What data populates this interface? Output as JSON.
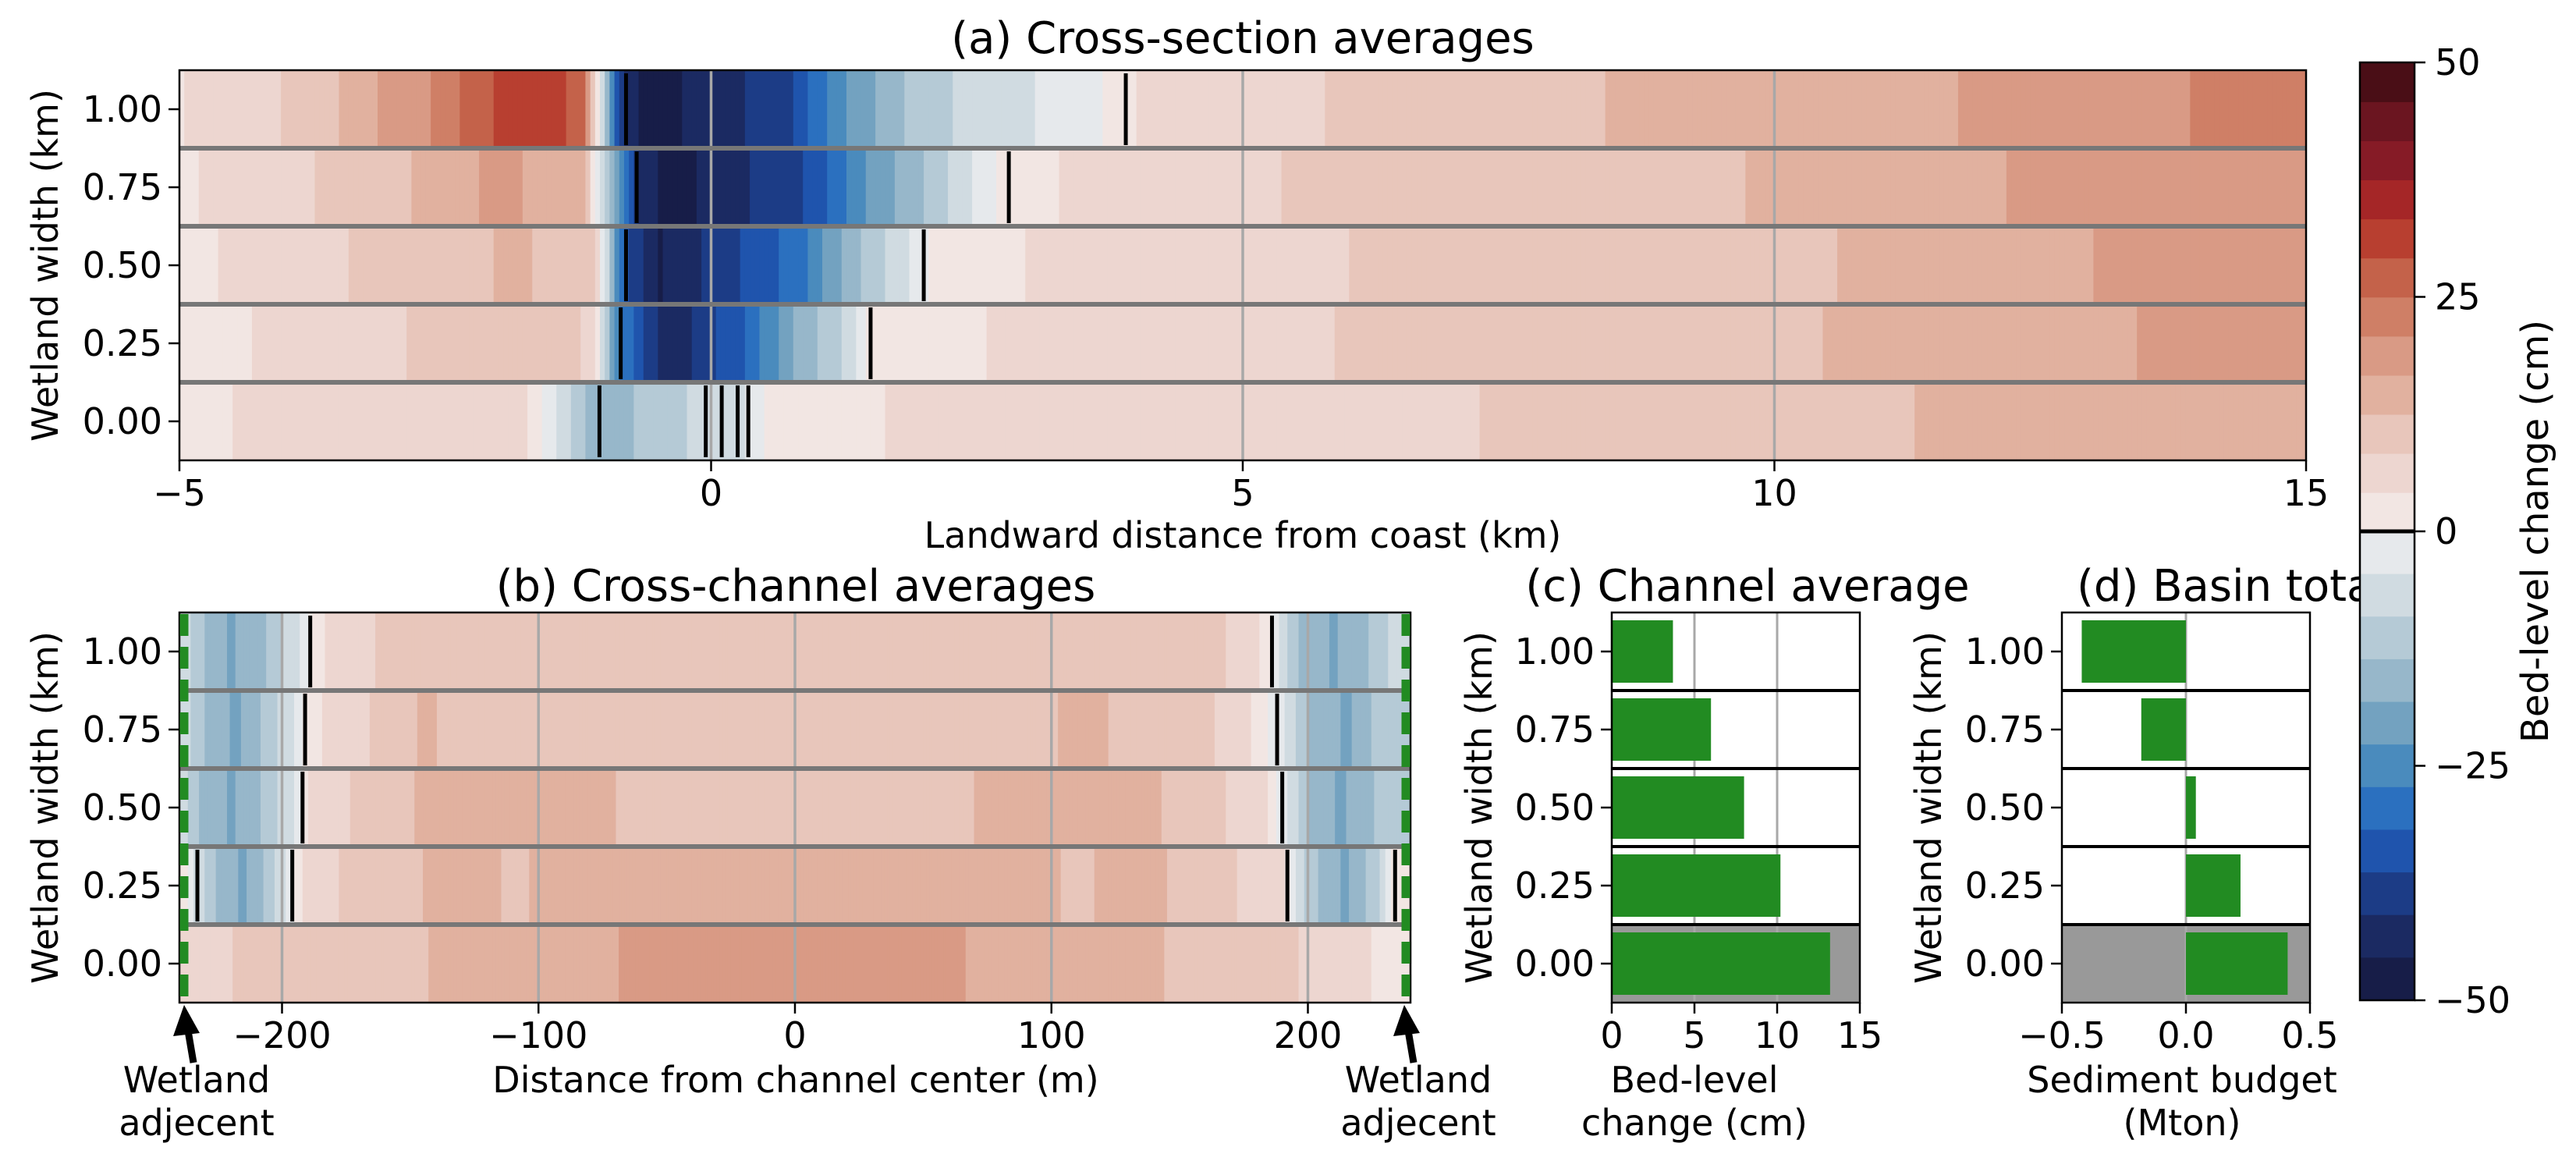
{
  "colorbar": {
    "label": "Bed-level change (cm)",
    "ticks": [
      50,
      25,
      0,
      -25,
      -50
    ],
    "range": [
      -50,
      50
    ],
    "positive_colors": [
      "#f2e6e3",
      "#edd6d0",
      "#e8c6bb",
      "#e1b19f",
      "#d99a85",
      "#cf7f66",
      "#c4624a",
      "#b83f30",
      "#a52627",
      "#861b26",
      "#6b1520",
      "#4a0e16"
    ],
    "negative_colors": [
      "#e6e9ec",
      "#d0dbe1",
      "#b5cad6",
      "#97b7ca",
      "#73a2c0",
      "#4a8bbd",
      "#2b70bf",
      "#1f54ad",
      "#1c3c86",
      "#1b2a62",
      "#171d48"
    ]
  },
  "panels": {
    "a": {
      "title": "(a) Cross-section averages",
      "xlabel": "Landward distance from coast (km)",
      "ylabel": "Wetland width (km)"
    },
    "b": {
      "title": "(b) Cross-channel averages",
      "xlabel": "Distance from channel center (m)",
      "ylabel": "Wetland width (km)"
    },
    "c": {
      "title": "(c) Channel average",
      "xlabel_line1": "Bed-level",
      "xlabel_line2": "change (cm)",
      "ylabel": "Wetland width (km)"
    },
    "d": {
      "title": "(d) Basin total",
      "xlabel_line1": "Sediment budget",
      "xlabel_line2": "(Mton)",
      "ylabel": "Wetland width (km)"
    }
  },
  "annotations": {
    "left_line1": "Wetland",
    "left_line2": "adjecent",
    "right_line1": "Wetland",
    "right_line2": "adjecent"
  },
  "chart_data": [
    {
      "panel": "a",
      "type": "heatmap",
      "rows": [
        "0.00",
        "0.25",
        "0.50",
        "0.75",
        "1.00"
      ],
      "xlim": [
        -5,
        15
      ],
      "xticks": [
        -5,
        0,
        5,
        10,
        15
      ],
      "xtick_labels": [
        "−5",
        "0",
        "5",
        "10",
        "15"
      ],
      "grid_x": [
        0,
        5,
        10
      ],
      "profiles": {
        "1.00": [
          [
            -5,
            4
          ],
          [
            -4.5,
            6
          ],
          [
            -3.7,
            10
          ],
          [
            -3.2,
            16
          ],
          [
            -2.7,
            20
          ],
          [
            -2.3,
            26
          ],
          [
            -1.8,
            32
          ],
          [
            -1.2,
            28
          ],
          [
            -0.85,
            -40
          ],
          [
            -0.6,
            -48
          ],
          [
            0.7,
            -38
          ],
          [
            1.2,
            -24
          ],
          [
            1.8,
            -14
          ],
          [
            2.6,
            -6
          ],
          [
            3.5,
            -3
          ],
          [
            3.9,
            4
          ],
          [
            5,
            6
          ],
          [
            6,
            9
          ],
          [
            7.3,
            11
          ],
          [
            8.8,
            13
          ],
          [
            10.2,
            14
          ],
          [
            11.4,
            16
          ],
          [
            12.8,
            19
          ],
          [
            14,
            21
          ]
        ],
        "0.75": [
          [
            -5,
            3
          ],
          [
            -4.5,
            6
          ],
          [
            -3.5,
            9
          ],
          [
            -2.7,
            13
          ],
          [
            -2,
            18
          ],
          [
            -1.2,
            13
          ],
          [
            -0.7,
            -40
          ],
          [
            -0.4,
            -48
          ],
          [
            0.9,
            -36
          ],
          [
            1.5,
            -22
          ],
          [
            2.2,
            -10
          ],
          [
            2.8,
            3
          ],
          [
            3.6,
            5
          ],
          [
            4.5,
            7
          ],
          [
            5.8,
            9
          ],
          [
            7.5,
            11
          ],
          [
            9,
            12
          ],
          [
            10.5,
            13
          ],
          [
            11.8,
            16
          ],
          [
            13,
            18
          ],
          [
            14,
            20
          ]
        ],
        "0.50": [
          [
            -5,
            3
          ],
          [
            -4.4,
            5
          ],
          [
            -3.5,
            8
          ],
          [
            -2.8,
            11
          ],
          [
            -1.8,
            13
          ],
          [
            -1.1,
            10
          ],
          [
            -0.8,
            -36
          ],
          [
            -0.5,
            -46
          ],
          [
            0.8,
            -30
          ],
          [
            1.3,
            -16
          ],
          [
            1.8,
            -6
          ],
          [
            2.2,
            3
          ],
          [
            3.5,
            5
          ],
          [
            5,
            7
          ],
          [
            6.5,
            9
          ],
          [
            8.3,
            11
          ],
          [
            10.3,
            12
          ],
          [
            12.1,
            15
          ],
          [
            13.7,
            18
          ]
        ],
        "0.25": [
          [
            -5,
            2
          ],
          [
            -4.4,
            4
          ],
          [
            -3.2,
            7
          ],
          [
            -2.7,
            9
          ],
          [
            -1.4,
            11
          ],
          [
            -1.1,
            6
          ],
          [
            -0.9,
            -25
          ],
          [
            -0.4,
            -45
          ],
          [
            0.3,
            -32
          ],
          [
            0.8,
            -18
          ],
          [
            1.3,
            -8
          ],
          [
            1.5,
            2
          ],
          [
            2.5,
            4
          ],
          [
            3.8,
            6
          ],
          [
            5.5,
            8
          ],
          [
            7.6,
            10
          ],
          [
            10,
            12
          ],
          [
            11.8,
            14
          ],
          [
            13.6,
            17
          ]
        ],
        "0.00": [
          [
            -5,
            3
          ],
          [
            -4.6,
            4
          ],
          [
            -3.2,
            6
          ],
          [
            -1.8,
            7
          ],
          [
            -1.3,
            -10
          ],
          [
            -1.0,
            -18
          ],
          [
            -0.6,
            -12
          ],
          [
            0.3,
            -5
          ],
          [
            0.6,
            3
          ],
          [
            2.4,
            5
          ],
          [
            3.9,
            6
          ],
          [
            6.8,
            8
          ],
          [
            9.4,
            10
          ],
          [
            11.7,
            13
          ],
          [
            13.7,
            15
          ]
        ]
      },
      "zero_contours": {
        "1.00": [
          -0.8,
          3.9
        ],
        "0.75": [
          -0.7,
          2.8
        ],
        "0.50": [
          -0.8,
          2.0
        ],
        "0.25": [
          -0.85,
          1.5
        ],
        "0.00": [
          -1.05,
          -0.05,
          0.1,
          0.25,
          0.35
        ]
      }
    },
    {
      "panel": "b",
      "type": "heatmap",
      "rows": [
        "0.00",
        "0.25",
        "0.50",
        "0.75",
        "1.00"
      ],
      "xlim": [
        -240,
        240
      ],
      "xticks": [
        -200,
        -100,
        0,
        100,
        200
      ],
      "xtick_labels": [
        "−200",
        "−100",
        "0",
        "100",
        "200"
      ],
      "grid_x": [
        -200,
        -100,
        0,
        100,
        200
      ],
      "profiles": {
        "1.00": [
          [
            -240,
            -5
          ],
          [
            -230,
            -14
          ],
          [
            -220,
            -19
          ],
          [
            -205,
            -13
          ],
          [
            -193,
            -5
          ],
          [
            -188,
            3
          ],
          [
            -175,
            6
          ],
          [
            -160,
            9
          ],
          [
            -145,
            12
          ],
          [
            -130,
            10
          ],
          [
            -115,
            12
          ],
          [
            -95,
            10
          ],
          [
            -60,
            9
          ],
          [
            60,
            9
          ],
          [
            95,
            10
          ],
          [
            120,
            12
          ],
          [
            145,
            12
          ],
          [
            165,
            9
          ],
          [
            180,
            6
          ],
          [
            188,
            -3
          ],
          [
            195,
            -13
          ],
          [
            210,
            -19
          ],
          [
            228,
            -12
          ],
          [
            236,
            -5
          ]
        ],
        "0.75": [
          [
            -240,
            -5
          ],
          [
            -230,
            -14
          ],
          [
            -218,
            -19
          ],
          [
            -205,
            -12
          ],
          [
            -195,
            -4
          ],
          [
            -190,
            3
          ],
          [
            -175,
            6
          ],
          [
            -160,
            10
          ],
          [
            -145,
            13
          ],
          [
            -125,
            11
          ],
          [
            -100,
            12
          ],
          [
            -80,
            11
          ],
          [
            -40,
            10
          ],
          [
            40,
            10
          ],
          [
            80,
            11
          ],
          [
            110,
            13
          ],
          [
            135,
            12
          ],
          [
            155,
            10
          ],
          [
            175,
            6
          ],
          [
            190,
            -4
          ],
          [
            200,
            -14
          ],
          [
            215,
            -19
          ],
          [
            232,
            -10
          ]
        ],
        "0.50": [
          [
            -240,
            -5
          ],
          [
            -232,
            -14
          ],
          [
            -220,
            -19
          ],
          [
            -207,
            -13
          ],
          [
            -195,
            -4
          ],
          [
            -190,
            4
          ],
          [
            -175,
            8
          ],
          [
            -160,
            11
          ],
          [
            -145,
            13
          ],
          [
            -120,
            15
          ],
          [
            -90,
            13
          ],
          [
            -50,
            12
          ],
          [
            50,
            12
          ],
          [
            90,
            13
          ],
          [
            120,
            14
          ],
          [
            150,
            12
          ],
          [
            170,
            8
          ],
          [
            183,
            5
          ],
          [
            192,
            -4
          ],
          [
            200,
            -14
          ],
          [
            213,
            -19
          ],
          [
            230,
            -12
          ]
        ],
        "0.25": [
          [
            -240,
            4
          ],
          [
            -233,
            -6
          ],
          [
            -225,
            -14
          ],
          [
            -215,
            -19
          ],
          [
            -205,
            -12
          ],
          [
            -198,
            -4
          ],
          [
            -192,
            4
          ],
          [
            -180,
            8
          ],
          [
            -165,
            10
          ],
          [
            -150,
            12
          ],
          [
            -130,
            14
          ],
          [
            -110,
            12
          ],
          [
            -70,
            15
          ],
          [
            70,
            15
          ],
          [
            110,
            12
          ],
          [
            135,
            14
          ],
          [
            155,
            11
          ],
          [
            175,
            8
          ],
          [
            190,
            5
          ],
          [
            196,
            -6
          ],
          [
            205,
            -15
          ],
          [
            215,
            -19
          ],
          [
            228,
            -10
          ],
          [
            234,
            4
          ]
        ],
        "0.00": [
          [
            -240,
            6
          ],
          [
            -225,
            8
          ],
          [
            -190,
            10
          ],
          [
            -150,
            12
          ],
          [
            -110,
            15
          ],
          [
            -60,
            17
          ],
          [
            60,
            17
          ],
          [
            100,
            15
          ],
          [
            125,
            14
          ],
          [
            150,
            12
          ],
          [
            180,
            10
          ],
          [
            200,
            8
          ],
          [
            220,
            5
          ],
          [
            232,
            3
          ]
        ]
      },
      "zero_contours": {
        "1.00": [
          -189,
          186
        ],
        "0.75": [
          -191,
          188
        ],
        "0.50": [
          -192,
          190
        ],
        "0.25": [
          -233,
          -196,
          192,
          234
        ],
        "0.00": []
      }
    },
    {
      "panel": "c",
      "type": "bar",
      "orientation": "horizontal",
      "categories": [
        "0.00",
        "0.25",
        "0.50",
        "0.75",
        "1.00"
      ],
      "values": [
        13.2,
        10.2,
        8.0,
        6.0,
        3.7
      ],
      "xlim": [
        0,
        15
      ],
      "xticks": [
        0,
        5,
        10,
        15
      ],
      "xtick_labels": [
        "0",
        "5",
        "10",
        "15"
      ],
      "bar_color": "#228b22",
      "highlight_row": "0.00"
    },
    {
      "panel": "d",
      "type": "bar",
      "orientation": "horizontal",
      "categories": [
        "0.00",
        "0.25",
        "0.50",
        "0.75",
        "1.00"
      ],
      "values": [
        0.41,
        0.22,
        0.04,
        -0.18,
        -0.42
      ],
      "xlim": [
        -0.5,
        0.5
      ],
      "xticks": [
        -0.5,
        0.0,
        0.5
      ],
      "xtick_labels": [
        "−0.5",
        "0.0",
        "0.5"
      ],
      "bar_color": "#228b22",
      "highlight_row": "0.00"
    }
  ]
}
